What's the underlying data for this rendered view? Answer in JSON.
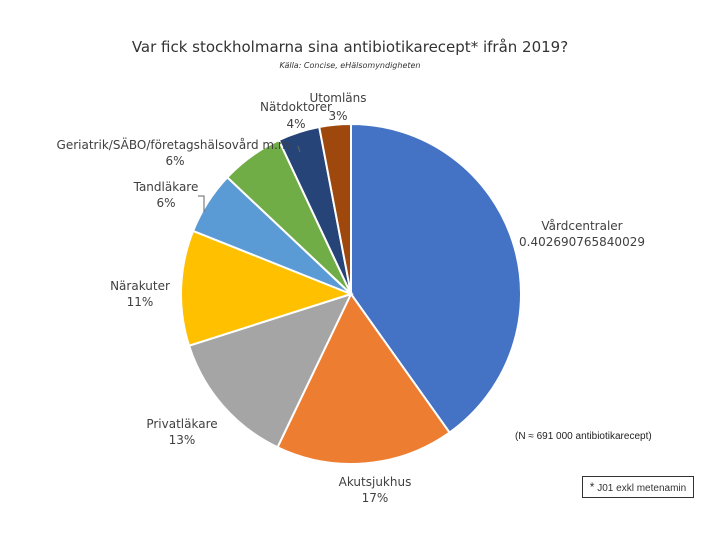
{
  "chart_data": {
    "type": "pie",
    "title": "Var fick stockholmarna sina antibiotikarecept* ifrån 2019?",
    "subtitle": "Källa: Concise, eHälsomyndigheten",
    "slices": [
      {
        "name": "Vårdcentraler",
        "value": 0.402690765840029,
        "label": "0.402690765840029",
        "color": "#4472C4"
      },
      {
        "name": "Akutsjukhus",
        "value": 0.17,
        "label": "17%",
        "color": "#ED7D31"
      },
      {
        "name": "Privatläkare",
        "value": 0.13,
        "label": "13%",
        "color": "#A5A5A5"
      },
      {
        "name": "Närakuter",
        "value": 0.11,
        "label": "11%",
        "color": "#FFC000"
      },
      {
        "name": "Tandläkare",
        "value": 0.06,
        "label": "6%",
        "color": "#5B9BD5"
      },
      {
        "name": "Geriatrik/SÄBO/företagshälsovård m.m.",
        "value": 0.06,
        "label": "6%",
        "color": "#70AD47"
      },
      {
        "name": "Nätdoktorer",
        "value": 0.04,
        "label": "4%",
        "color": "#264478"
      },
      {
        "name": "Utomläns",
        "value": 0.03,
        "label": "3%",
        "color": "#9E480E"
      }
    ],
    "annotations": {
      "n_note": "(N ≈ 691 000 antibiotikarecept)",
      "footnote_star": "*",
      "footnote_text": "J01 exkl metenamin"
    }
  }
}
